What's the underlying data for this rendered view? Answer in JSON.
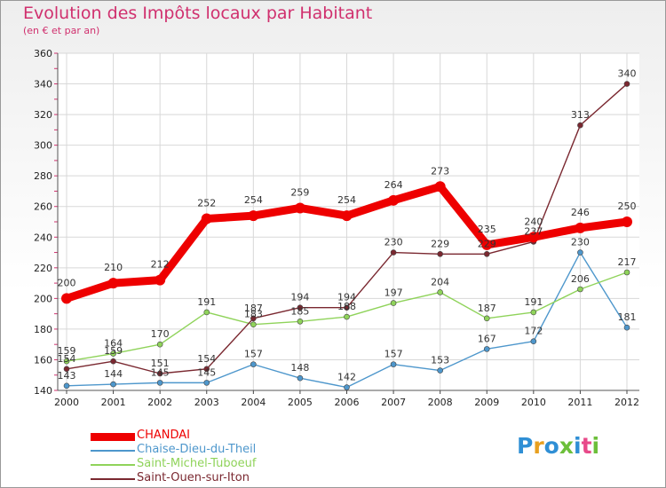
{
  "header": {
    "title": "Evolution des Impôts locaux par Habitant",
    "subtitle": "(en € et par an)"
  },
  "logo": {
    "text": "Proxiti",
    "colors": [
      "#2f8fd5",
      "#e8a020",
      "#2f8fd5",
      "#6cbf3a",
      "#2f8fd5",
      "#e84a8a",
      "#6cbf3a"
    ]
  },
  "chart_data": {
    "type": "line",
    "title": "Evolution des Impôts locaux par Habitant",
    "subtitle": "(en € et par an)",
    "xlabel": "",
    "ylabel": "",
    "ylim": [
      140,
      360
    ],
    "yticks": [
      140,
      160,
      180,
      200,
      220,
      240,
      260,
      280,
      300,
      320,
      340,
      360
    ],
    "grid": true,
    "legend_position": "bottom-left",
    "x": [
      "2000",
      "2001",
      "2002",
      "2003",
      "2004",
      "2005",
      "2006",
      "2007",
      "2008",
      "2009",
      "2010",
      "2011",
      "2012"
    ],
    "series": [
      {
        "name": "CHANDAI",
        "color": "#ee0000",
        "values": [
          200,
          210,
          212,
          252,
          254,
          259,
          254,
          264,
          273,
          235,
          240,
          246,
          250
        ],
        "bold": true
      },
      {
        "name": "Chaise-Dieu-du-Theil",
        "color": "#4e97cc",
        "values": [
          143,
          144,
          145,
          145,
          157,
          148,
          142,
          157,
          153,
          167,
          172,
          230,
          181
        ]
      },
      {
        "name": "Saint-Michel-Tuboeuf",
        "color": "#8fd35a",
        "values": [
          159,
          164,
          170,
          191,
          183,
          185,
          188,
          197,
          204,
          187,
          191,
          206,
          217
        ]
      },
      {
        "name": "Saint-Ouen-sur-Iton",
        "color": "#7a2830",
        "values": [
          154,
          159,
          151,
          154,
          187,
          194,
          194,
          230,
          229,
          229,
          237,
          313,
          340
        ]
      }
    ]
  }
}
